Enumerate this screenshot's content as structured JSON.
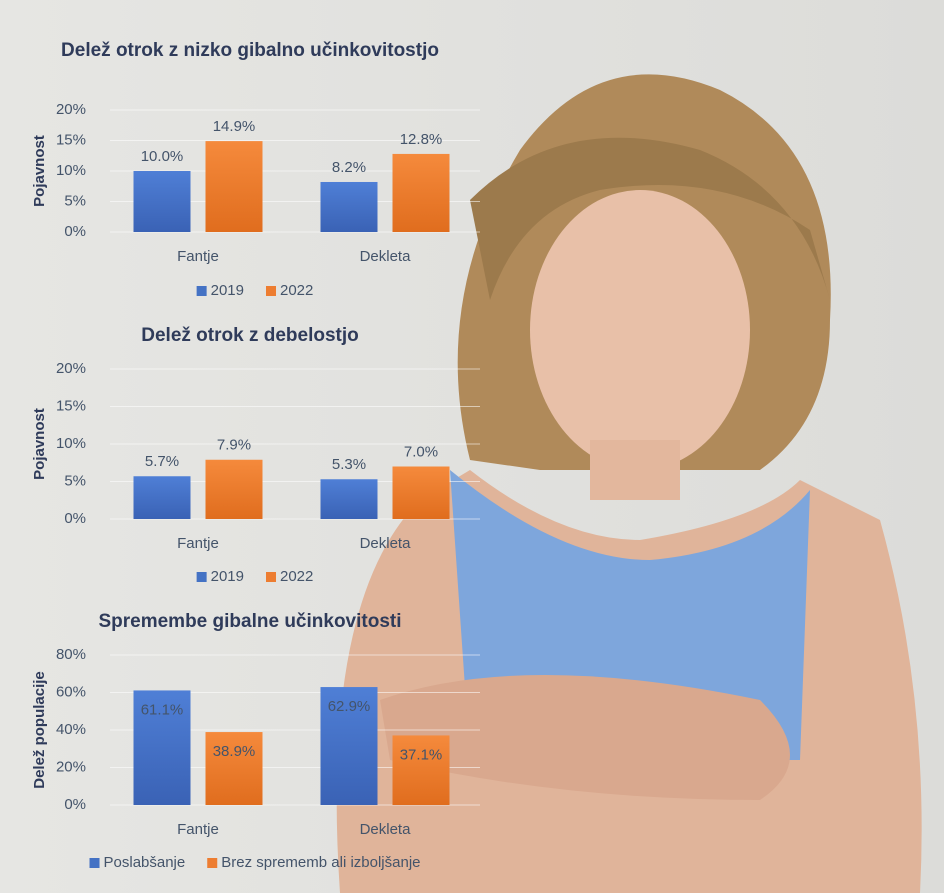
{
  "chart_data": [
    {
      "type": "bar",
      "title": "Delež otrok z nizko gibalno učinkovitostjo",
      "y_label": "Pojavnost",
      "categories": [
        "Fantje",
        "Dekleta"
      ],
      "series": [
        {
          "name": "2019",
          "color": "#4472c4",
          "values": [
            10.0,
            8.2
          ],
          "value_labels": [
            "10.0%",
            "8.2%"
          ]
        },
        {
          "name": "2022",
          "color": "#ed7d31",
          "values": [
            14.9,
            12.8
          ],
          "value_labels": [
            "14.9%",
            "12.8%"
          ]
        }
      ],
      "ylim": [
        0,
        20
      ],
      "yticks": [
        {
          "value": 0,
          "label": "0%"
        },
        {
          "value": 5,
          "label": "5%"
        },
        {
          "value": 10,
          "label": "10%"
        },
        {
          "value": 15,
          "label": "15%"
        },
        {
          "value": 20,
          "label": "20%"
        }
      ],
      "grid": true,
      "value_label_position": "outside",
      "legend": "bottom"
    },
    {
      "type": "bar",
      "title": "Delež otrok z debelostjo",
      "y_label": "Pojavnost",
      "categories": [
        "Fantje",
        "Dekleta"
      ],
      "series": [
        {
          "name": "2019",
          "color": "#4472c4",
          "values": [
            5.7,
            5.3
          ],
          "value_labels": [
            "5.7%",
            "5.3%"
          ]
        },
        {
          "name": "2022",
          "color": "#ed7d31",
          "values": [
            7.9,
            7.0
          ],
          "value_labels": [
            "7.9%",
            "7.0%"
          ]
        }
      ],
      "ylim": [
        0,
        20
      ],
      "yticks": [
        {
          "value": 0,
          "label": "0%"
        },
        {
          "value": 5,
          "label": "5%"
        },
        {
          "value": 10,
          "label": "10%"
        },
        {
          "value": 15,
          "label": "15%"
        },
        {
          "value": 20,
          "label": "20%"
        }
      ],
      "grid": true,
      "value_label_position": "outside",
      "legend": "bottom"
    },
    {
      "type": "bar",
      "title": "Spremembe gibalne učinkovitosti",
      "y_label": "Delež populacije",
      "categories": [
        "Fantje",
        "Dekleta"
      ],
      "series": [
        {
          "name": "Poslabšanje",
          "color": "#4472c4",
          "values": [
            61.1,
            62.9
          ],
          "value_labels": [
            "61.1%",
            "62.9%"
          ]
        },
        {
          "name": "Brez sprememb ali izboljšanje",
          "color": "#ed7d31",
          "values": [
            38.9,
            37.1
          ],
          "value_labels": [
            "38.9%",
            "37.1%"
          ]
        }
      ],
      "ylim": [
        0,
        80
      ],
      "yticks": [
        {
          "value": 0,
          "label": "0%"
        },
        {
          "value": 20,
          "label": "20%"
        },
        {
          "value": 40,
          "label": "40%"
        },
        {
          "value": 60,
          "label": "60%"
        },
        {
          "value": 80,
          "label": "80%"
        }
      ],
      "grid": true,
      "value_label_position": "inside",
      "legend": "bottom"
    }
  ]
}
